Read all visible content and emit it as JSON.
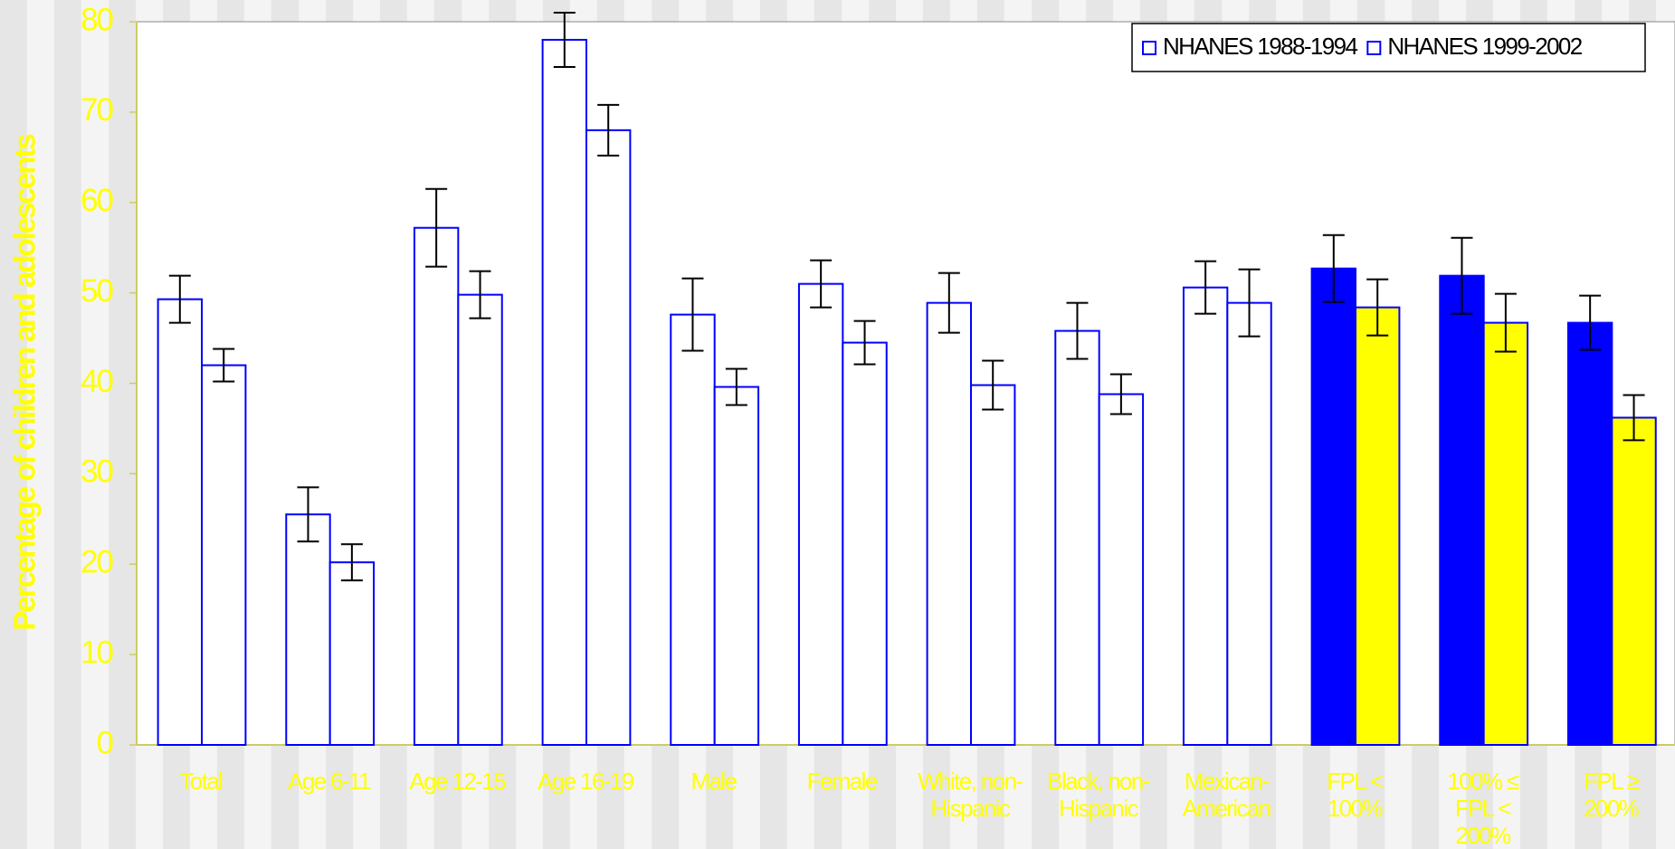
{
  "chart_data": {
    "type": "bar",
    "ylabel": "Percentage of children and adolescents",
    "categories": [
      "Total",
      "Age 6-11",
      "Age 12-15",
      "Age 16-19",
      "Male",
      "Female",
      "White, non-Hispanic",
      "Black, non-Hispanic",
      "Mexican-American",
      "FPL < 100%",
      "100% ≤ FPL < 200%",
      "FPL ≥ 200%"
    ],
    "series": [
      {
        "name": "NHANES 1988-1994",
        "color": "#0000ff",
        "fill_colors": [
          "#ffffff",
          "#ffffff",
          "#ffffff",
          "#ffffff",
          "#ffffff",
          "#ffffff",
          "#ffffff",
          "#ffffff",
          "#ffffff",
          "#0000ff",
          "#0000ff",
          "#0000ff"
        ],
        "values": [
          49.3,
          25.5,
          57.2,
          78,
          47.6,
          51,
          48.9,
          45.8,
          50.6,
          52.7,
          51.9,
          46.7
        ],
        "errors": [
          2.6,
          3,
          4.3,
          3,
          4,
          2.6,
          3.3,
          3.1,
          2.9,
          3.7,
          4.2,
          3
        ]
      },
      {
        "name": "NHANES 1999-2002",
        "color": "#0000ff",
        "fill_colors": [
          "#ffffff",
          "#ffffff",
          "#ffffff",
          "#ffffff",
          "#ffffff",
          "#ffffff",
          "#ffffff",
          "#ffffff",
          "#ffffff",
          "#ffff00",
          "#ffff00",
          "#ffff00"
        ],
        "values": [
          42,
          20.2,
          49.8,
          68,
          39.6,
          44.5,
          39.8,
          38.8,
          48.9,
          48.4,
          46.7,
          36.2
        ],
        "errors": [
          1.8,
          2,
          2.6,
          2.8,
          2,
          2.4,
          2.7,
          2.2,
          3.7,
          3.1,
          3.2,
          2.5
        ]
      }
    ],
    "ylim": [
      0,
      80
    ],
    "yticks": [
      0,
      10,
      20,
      30,
      40,
      50,
      60,
      70,
      80
    ],
    "legend": "top-right"
  }
}
